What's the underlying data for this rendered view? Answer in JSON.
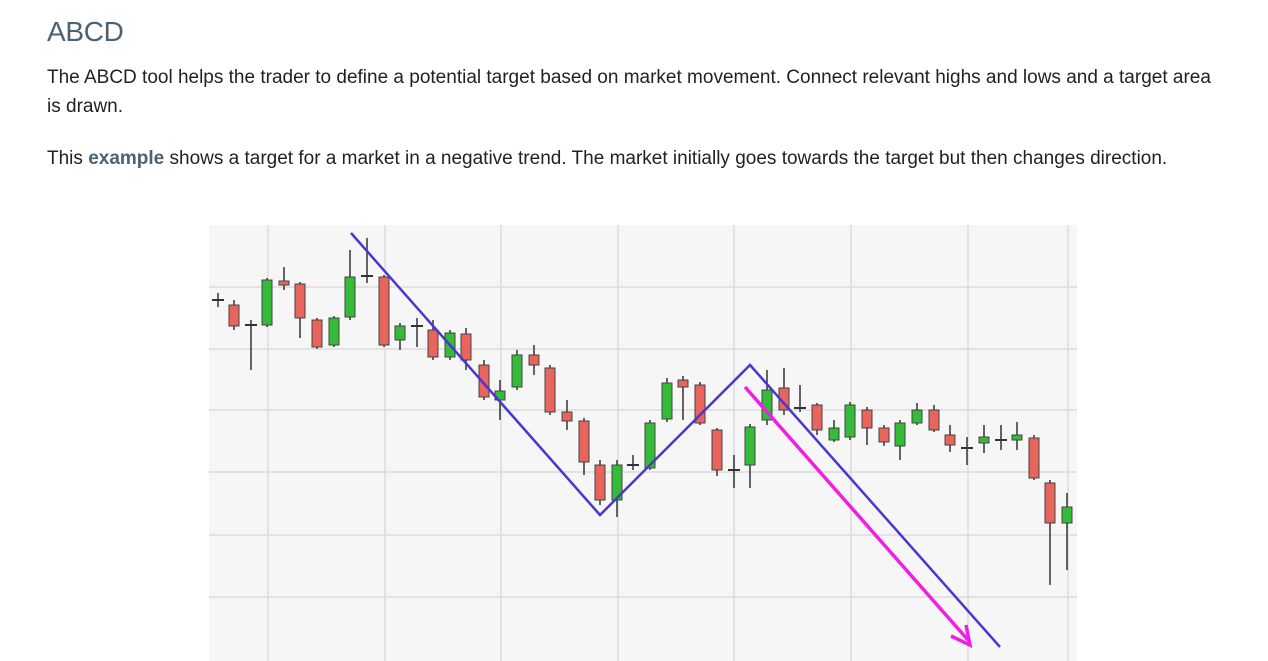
{
  "header": {
    "title": "ABCD"
  },
  "paragraphs": [
    {
      "text": "The ABCD tool helps the trader to define a potential target based on market movement. Connect relevant highs and lows and a target area is drawn."
    },
    {
      "before": "This",
      "link": "example",
      "after": "shows a target for a market in a negative trend. The market initially goes towards the target but then changes direction."
    }
  ]
}
